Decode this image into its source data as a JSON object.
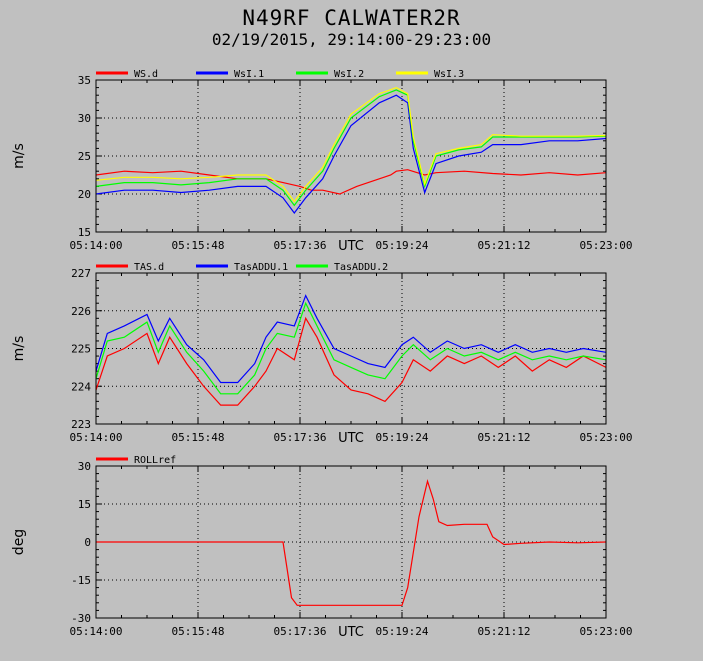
{
  "header": {
    "title": "N49RF CALWATER2R",
    "subtitle": "02/19/2015, 29:14:00-29:23:00"
  },
  "chart_data": [
    {
      "type": "line",
      "ylabel": "m/s",
      "xlabel": "UTC",
      "ylim": [
        15,
        35
      ],
      "yticks": [
        15,
        20,
        25,
        30,
        35
      ],
      "xlim_minutes": [
        0,
        9
      ],
      "x_tick_labels": [
        "05:14:00",
        "05:15:48",
        "05:17:36",
        "05:19:24",
        "05:21:12",
        "05:23:00"
      ],
      "grid": true,
      "legend_position": "top-left",
      "series": [
        {
          "name": "WS.d",
          "color": "#ff0000",
          "x": [
            0,
            0.5,
            1,
            1.5,
            2,
            2.5,
            3,
            3.3,
            3.6,
            3.8,
            4,
            4.3,
            4.6,
            5,
            5.2,
            5.3,
            5.5,
            5.8,
            6,
            6.5,
            7,
            7.5,
            8,
            8.5,
            9
          ],
          "y": [
            22.5,
            23,
            22.8,
            23,
            22.5,
            22,
            22,
            21.5,
            21,
            20.5,
            20.5,
            20,
            21,
            22,
            22.5,
            23,
            23.2,
            22.5,
            22.8,
            23,
            22.7,
            22.5,
            22.8,
            22.5,
            22.8
          ]
        },
        {
          "name": "WsI.1",
          "color": "#0000ff",
          "x": [
            0,
            0.5,
            1,
            1.5,
            2,
            2.5,
            3,
            3.3,
            3.5,
            3.7,
            4,
            4.2,
            4.5,
            5,
            5.3,
            5.5,
            5.6,
            5.8,
            6,
            6.4,
            6.8,
            7,
            7.5,
            8,
            8.5,
            9
          ],
          "y": [
            20,
            20.5,
            20.5,
            20.2,
            20.5,
            21,
            21,
            19.5,
            17.5,
            19.5,
            22,
            25,
            29,
            32,
            33,
            32,
            26,
            20.2,
            24,
            25,
            25.5,
            26.5,
            26.5,
            27,
            27,
            27.3
          ]
        },
        {
          "name": "WsI.2",
          "color": "#00ff00",
          "x": [
            0,
            0.5,
            1,
            1.5,
            2,
            2.5,
            3,
            3.3,
            3.5,
            3.7,
            4,
            4.2,
            4.5,
            5,
            5.3,
            5.5,
            5.6,
            5.8,
            6,
            6.4,
            6.8,
            7,
            7.5,
            8,
            8.5,
            9
          ],
          "y": [
            21,
            21.5,
            21.5,
            21.2,
            21.5,
            22,
            22,
            20.5,
            18.5,
            20.5,
            23,
            26,
            30,
            32.8,
            33.7,
            33,
            27,
            21,
            25,
            25.8,
            26.2,
            27.5,
            27.5,
            27.5,
            27.5,
            27.6
          ]
        },
        {
          "name": "WsI.3",
          "color": "#ffff00",
          "x": [
            0,
            0.5,
            1,
            1.5,
            2,
            2.5,
            3,
            3.3,
            3.5,
            3.7,
            4,
            4.2,
            4.5,
            5,
            5.3,
            5.5,
            5.6,
            5.8,
            6,
            6.4,
            6.8,
            7,
            7.5,
            8,
            8.5,
            9
          ],
          "y": [
            21.8,
            22.2,
            22.2,
            22,
            22.2,
            22.5,
            22.5,
            21,
            19,
            21,
            23.5,
            26.5,
            30.5,
            33.2,
            34,
            33.2,
            27.5,
            21.3,
            25.3,
            26,
            26.5,
            27.8,
            27.6,
            27.6,
            27.6,
            27.7
          ]
        }
      ]
    },
    {
      "type": "line",
      "ylabel": "m/s",
      "xlabel": "UTC",
      "ylim": [
        223,
        227
      ],
      "yticks": [
        223,
        224,
        225,
        226,
        227
      ],
      "xlim_minutes": [
        0,
        9
      ],
      "x_tick_labels": [
        "05:14:00",
        "05:15:48",
        "05:17:36",
        "05:19:24",
        "05:21:12",
        "05:23:00"
      ],
      "grid": true,
      "legend_position": "top-left",
      "series": [
        {
          "name": "TAS.d",
          "color": "#ff0000",
          "x": [
            0,
            0.2,
            0.5,
            0.9,
            1.1,
            1.3,
            1.6,
            1.9,
            2.2,
            2.5,
            2.8,
            3.0,
            3.2,
            3.5,
            3.7,
            3.9,
            4.2,
            4.5,
            4.8,
            5.1,
            5.4,
            5.6,
            5.9,
            6.2,
            6.5,
            6.8,
            7.1,
            7.4,
            7.7,
            8.0,
            8.3,
            8.6,
            9.0
          ],
          "y": [
            223.9,
            224.8,
            225.0,
            225.4,
            224.6,
            225.3,
            224.6,
            224.0,
            223.5,
            223.5,
            224.0,
            224.4,
            225.0,
            224.7,
            225.8,
            225.3,
            224.3,
            223.9,
            223.8,
            223.6,
            224.1,
            224.7,
            224.4,
            224.8,
            224.6,
            224.8,
            224.5,
            224.8,
            224.4,
            224.7,
            224.5,
            224.8,
            224.5
          ]
        },
        {
          "name": "TasADDU.1",
          "color": "#0000ff",
          "x": [
            0,
            0.2,
            0.5,
            0.9,
            1.1,
            1.3,
            1.6,
            1.9,
            2.2,
            2.5,
            2.8,
            3.0,
            3.2,
            3.5,
            3.7,
            3.9,
            4.2,
            4.5,
            4.8,
            5.1,
            5.4,
            5.6,
            5.9,
            6.2,
            6.5,
            6.8,
            7.1,
            7.4,
            7.7,
            8.0,
            8.3,
            8.6,
            9.0
          ],
          "y": [
            224.4,
            225.4,
            225.6,
            225.9,
            225.2,
            225.8,
            225.1,
            224.7,
            224.1,
            224.1,
            224.6,
            225.3,
            225.7,
            225.6,
            226.4,
            225.8,
            225.0,
            224.8,
            224.6,
            224.5,
            225.1,
            225.3,
            224.9,
            225.2,
            225.0,
            225.1,
            224.9,
            225.1,
            224.9,
            225.0,
            224.9,
            225.0,
            224.9
          ]
        },
        {
          "name": "TasADDU.2",
          "color": "#00ff00",
          "x": [
            0,
            0.2,
            0.5,
            0.9,
            1.1,
            1.3,
            1.6,
            1.9,
            2.2,
            2.5,
            2.8,
            3.0,
            3.2,
            3.5,
            3.7,
            3.9,
            4.2,
            4.5,
            4.8,
            5.1,
            5.4,
            5.6,
            5.9,
            6.2,
            6.5,
            6.8,
            7.1,
            7.4,
            7.7,
            8.0,
            8.3,
            8.6,
            9.0
          ],
          "y": [
            224.2,
            225.2,
            225.3,
            225.7,
            224.9,
            225.6,
            224.9,
            224.4,
            223.8,
            223.8,
            224.3,
            225.0,
            225.4,
            225.3,
            226.2,
            225.6,
            224.7,
            224.5,
            224.3,
            224.2,
            224.8,
            225.1,
            224.7,
            225.0,
            224.8,
            224.9,
            224.7,
            224.9,
            224.7,
            224.8,
            224.7,
            224.8,
            224.7
          ]
        }
      ]
    },
    {
      "type": "line",
      "ylabel": "deg",
      "xlabel": "UTC",
      "ylim": [
        -30,
        30
      ],
      "yticks": [
        -30,
        -15,
        0,
        15,
        30
      ],
      "xlim_minutes": [
        0,
        9
      ],
      "x_tick_labels": [
        "05:14:00",
        "05:15:48",
        "05:17:36",
        "05:19:24",
        "05:21:12",
        "05:23:00"
      ],
      "grid": true,
      "legend_position": "top-left",
      "series": [
        {
          "name": "ROLLref",
          "color": "#ff0000",
          "x": [
            0,
            1,
            2,
            3,
            3.3,
            3.45,
            3.55,
            3.7,
            4.5,
            5.4,
            5.5,
            5.7,
            5.85,
            5.95,
            6.05,
            6.2,
            6.5,
            6.9,
            7.0,
            7.2,
            7.5,
            8,
            8.5,
            9
          ],
          "y": [
            0,
            0,
            0,
            0,
            0,
            -22,
            -25,
            -25,
            -25,
            -25,
            -18,
            10,
            24,
            17,
            8,
            6.5,
            7,
            7,
            2,
            -1,
            -0.5,
            0,
            -0.3,
            0
          ]
        }
      ]
    }
  ]
}
